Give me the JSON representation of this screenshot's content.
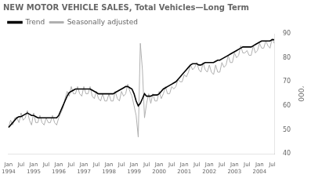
{
  "chart_data": {
    "type": "line",
    "title": "NEW MOTOR VEHICLE SALES, Total Vehicles—Long Term",
    "ylabel": "’000",
    "categories": [
      [
        "Jan",
        "1994"
      ],
      null,
      null,
      null,
      null,
      null,
      "Jul",
      null,
      null,
      null,
      null,
      null,
      [
        "Jan",
        "1995"
      ],
      null,
      null,
      null,
      null,
      null,
      "Jul",
      null,
      null,
      null,
      null,
      null,
      [
        "Jan",
        "1996"
      ],
      null,
      null,
      null,
      null,
      null,
      "Jul",
      null,
      null,
      null,
      null,
      null,
      [
        "Jan",
        "1997"
      ],
      null,
      null,
      null,
      null,
      null,
      "Jul",
      null,
      null,
      null,
      null,
      null,
      [
        "Jan",
        "1998"
      ],
      null,
      null,
      null,
      null,
      null,
      "Jul",
      null,
      null,
      null,
      null,
      null,
      [
        "Jan",
        "1999"
      ],
      null,
      null,
      null,
      null,
      null,
      "Jul",
      null,
      null,
      null,
      null,
      null,
      [
        "Jan",
        "2000"
      ],
      null,
      null,
      null,
      null,
      null,
      "Jul",
      null,
      null,
      null,
      null,
      null,
      [
        "Jan",
        "2001"
      ],
      null,
      null,
      null,
      null,
      null,
      "Jul",
      null,
      null,
      null,
      null,
      null,
      [
        "Jan",
        "2002"
      ],
      null,
      null,
      null,
      null,
      null,
      "Jul",
      null,
      null,
      null,
      null,
      null,
      [
        "Jan",
        "2003"
      ],
      null,
      null,
      null,
      null,
      null,
      "Jul",
      null,
      null,
      null,
      null,
      null,
      [
        "Jan",
        "2004"
      ],
      null,
      null,
      null,
      null,
      null,
      "Jul",
      null
    ],
    "series": [
      {
        "name": "Trend",
        "color": "#000000",
        "values": [
          51.0,
          52.0,
          53.0,
          54.0,
          55.0,
          55.5,
          55.5,
          56.0,
          56.5,
          57.0,
          56.5,
          56.0,
          56.0,
          55.5,
          55.0,
          55.0,
          55.0,
          55.0,
          55.0,
          55.0,
          55.0,
          55.0,
          55.0,
          55.0,
          56.0,
          58.0,
          60.0,
          62.0,
          64.0,
          65.5,
          66.0,
          66.5,
          67.0,
          67.0,
          67.0,
          67.0,
          67.0,
          67.0,
          67.0,
          67.0,
          66.5,
          66.0,
          65.5,
          65.0,
          65.0,
          65.0,
          65.0,
          65.0,
          65.0,
          65.0,
          65.0,
          65.5,
          66.0,
          66.5,
          67.0,
          67.5,
          68.0,
          68.0,
          67.5,
          67.0,
          65.0,
          62.0,
          60.0,
          61.0,
          63.0,
          65.0,
          64.0,
          64.0,
          64.0,
          64.5,
          64.5,
          64.5,
          65.0,
          66.0,
          67.0,
          67.5,
          68.0,
          68.5,
          69.0,
          69.5,
          70.0,
          71.0,
          72.0,
          73.0,
          74.0,
          75.0,
          76.0,
          77.0,
          77.5,
          77.5,
          77.5,
          77.0,
          77.0,
          77.5,
          78.0,
          78.0,
          78.0,
          78.0,
          78.0,
          78.5,
          79.0,
          79.0,
          79.5,
          80.0,
          80.5,
          81.0,
          81.5,
          82.0,
          82.5,
          83.0,
          83.5,
          84.0,
          84.5,
          84.5,
          84.5,
          84.5,
          84.5,
          85.0,
          85.5,
          86.0,
          86.5,
          87.0,
          87.0,
          87.0,
          87.0,
          87.0,
          87.5,
          87.5
        ]
      },
      {
        "name": "Seasonally adjusted",
        "color": "#b0b0b0",
        "values": [
          51.0,
          54.0,
          52.0,
          55.0,
          55.0,
          53.0,
          57.0,
          54.0,
          55.0,
          58.0,
          54.0,
          52.0,
          57.0,
          53.0,
          53.0,
          56.0,
          53.0,
          52.0,
          55.0,
          53.0,
          53.0,
          56.0,
          53.0,
          52.0,
          55.0,
          57.0,
          59.0,
          63.0,
          66.0,
          64.0,
          68.0,
          65.0,
          65.0,
          68.0,
          65.0,
          64.0,
          68.0,
          65.0,
          65.0,
          68.0,
          64.0,
          63.0,
          66.0,
          63.0,
          62.0,
          65.0,
          62.0,
          62.0,
          65.0,
          62.0,
          62.0,
          66.0,
          63.0,
          62.0,
          66.0,
          64.0,
          65.0,
          69.0,
          66.0,
          64.0,
          60.0,
          56.0,
          47.0,
          86.0,
          75.0,
          55.0,
          61.0,
          65.0,
          61.0,
          65.0,
          62.0,
          62.0,
          66.0,
          63.0,
          65.0,
          68.0,
          65.0,
          65.0,
          68.0,
          67.0,
          68.0,
          71.0,
          70.0,
          70.0,
          73.0,
          72.0,
          74.0,
          77.0,
          75.0,
          76.0,
          78.0,
          75.0,
          74.0,
          78.0,
          75.0,
          74.0,
          77.0,
          74.0,
          73.0,
          77.0,
          74.0,
          74.0,
          78.0,
          76.0,
          77.0,
          81.0,
          78.0,
          78.0,
          82.0,
          80.0,
          81.0,
          85.0,
          82.0,
          82.0,
          83.0,
          81.0,
          81.0,
          85.0,
          82.0,
          83.0,
          86.0,
          84.0,
          84.0,
          87.0,
          85.0,
          84.0,
          88.0,
          86.0
        ]
      }
    ],
    "ylim": [
      40,
      90
    ],
    "yticks": [
      40,
      50,
      60,
      70,
      80,
      90
    ],
    "grid": false,
    "legend": "upper left"
  }
}
